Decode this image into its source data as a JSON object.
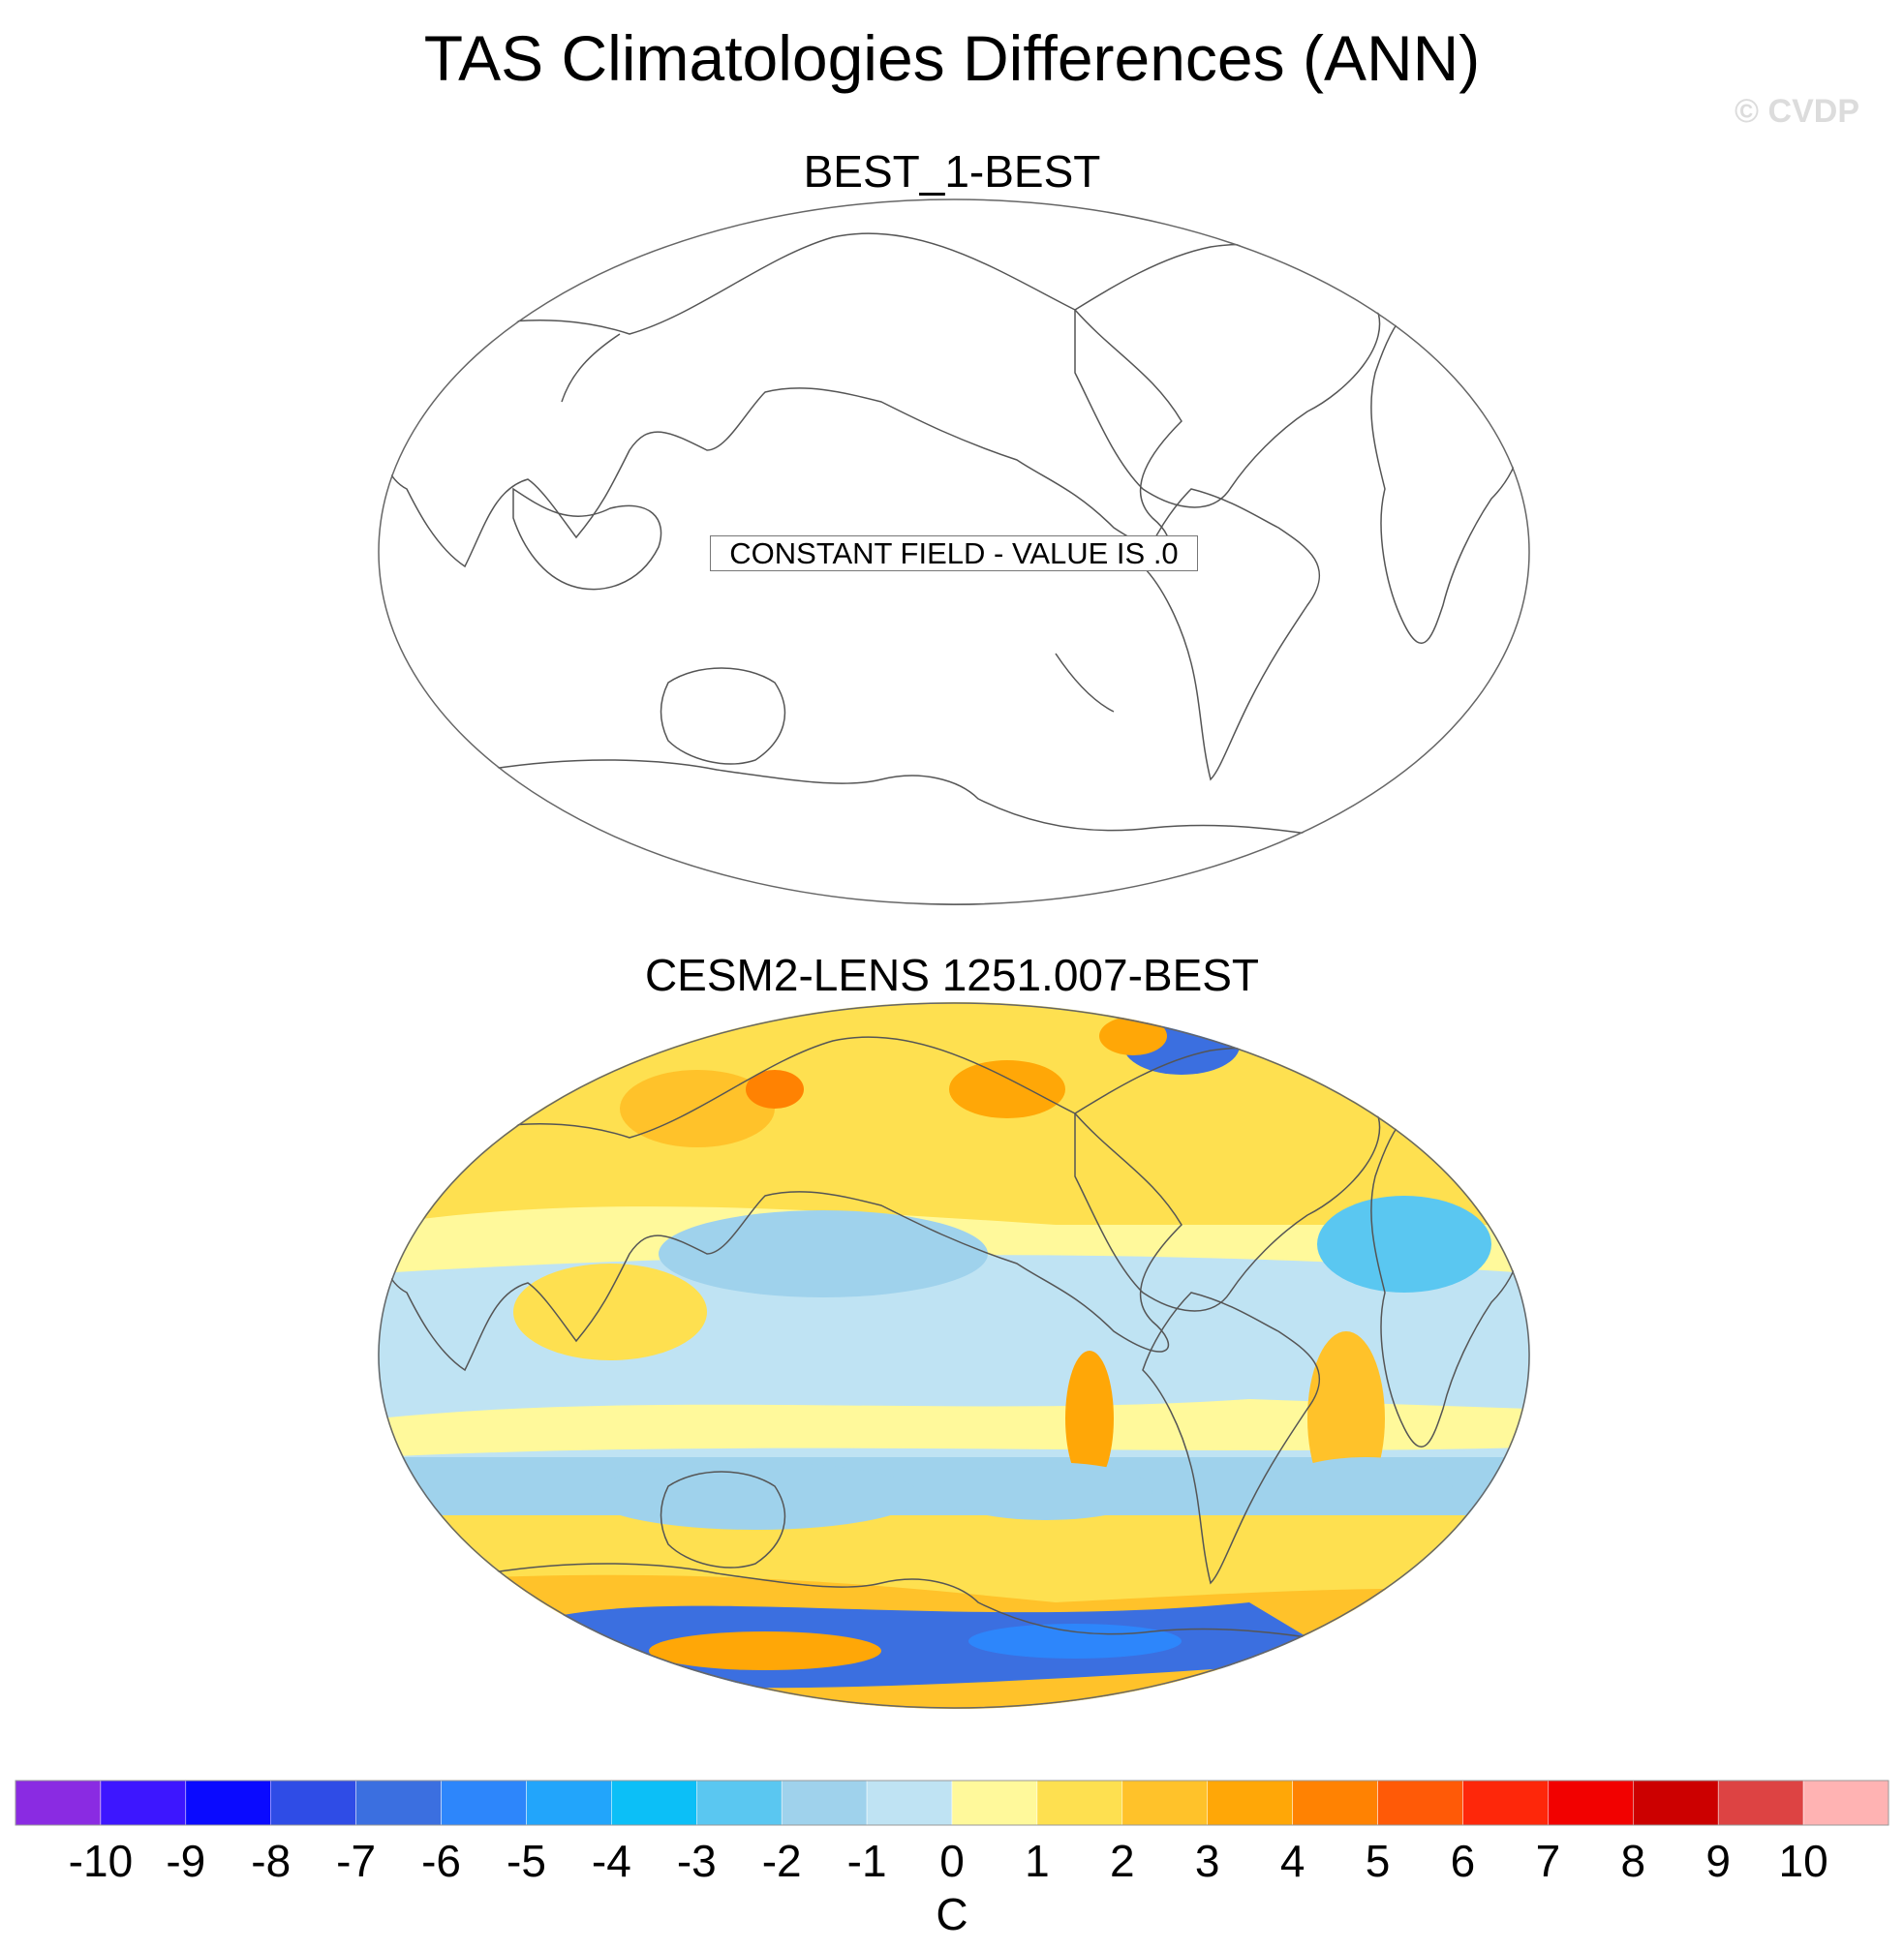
{
  "chart_data": [
    {
      "type": "heatmap",
      "title": "TAS Climatologies Differences (ANN)",
      "panels": [
        {
          "title": "BEST_1-BEST",
          "note": "CONSTANT FIELD - VALUE IS .0"
        },
        {
          "title": "CESM2-LENS 1251.007-BEST"
        }
      ],
      "colorbar": {
        "units": "C",
        "ticks": [
          "-10",
          "-9",
          "-8",
          "-7",
          "-6",
          "-5",
          "-4",
          "-3",
          "-2",
          "-1",
          "0",
          "1",
          "2",
          "3",
          "4",
          "5",
          "6",
          "7",
          "8",
          "9",
          "10"
        ],
        "colors": [
          "#8a2be2",
          "#3d16ff",
          "#0a0aff",
          "#2f4ce6",
          "#3b6fe0",
          "#2d86fb",
          "#22a5fb",
          "#0cbff7",
          "#5ac7f1",
          "#9fd2ec",
          "#bfe3f3",
          "#fff99b",
          "#fee050",
          "#ffc22a",
          "#ffa707",
          "#ff8202",
          "#ff5a07",
          "#fe270a",
          "#f20100",
          "#cc0000",
          "#dd4343",
          "#ffb3b3"
        ]
      }
    }
  ],
  "watermark": "© CVDP"
}
